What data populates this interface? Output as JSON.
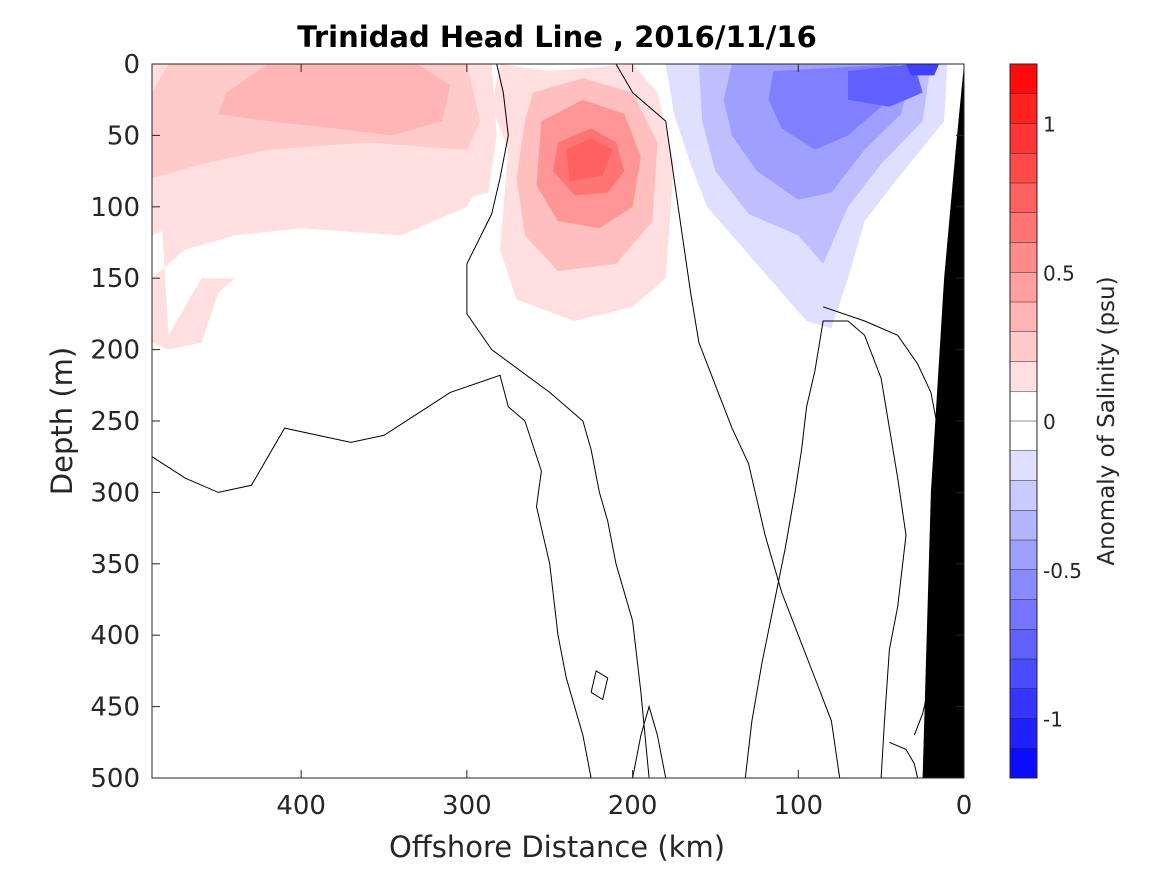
{
  "chart_data": {
    "type": "heatmap",
    "title": "Trinidad Head Line , 2016/11/16",
    "xlabel": "Offshore Distance (km)",
    "ylabel": "Depth (m)",
    "xlim": [
      490,
      0
    ],
    "ylim": [
      500,
      0
    ],
    "x_reversed": true,
    "y_reversed": true,
    "x_ticks": [
      400,
      300,
      200,
      100,
      0
    ],
    "y_ticks": [
      0,
      50,
      100,
      150,
      200,
      250,
      300,
      350,
      400,
      450,
      500
    ],
    "colorbar": {
      "label": "Anomaly of Salinity (psu)",
      "range": [
        -1.2,
        1.2
      ],
      "levels": 24,
      "ticks": [
        -1,
        -0.5,
        0,
        0.5,
        1
      ],
      "tick_labels": [
        "-1",
        "-0.5",
        "0",
        "0.5",
        "1"
      ]
    },
    "features": [
      {
        "kind": "positive_anomaly",
        "x_range": [
          490,
          290
        ],
        "depth_range": [
          0,
          195
        ],
        "peak_value": 0.35
      },
      {
        "kind": "positive_anomaly",
        "x_range": [
          280,
          175
        ],
        "depth_range": [
          0,
          180
        ],
        "peak_value": 0.75,
        "center": [
          220,
          70
        ]
      },
      {
        "kind": "negative_anomaly",
        "x_range": [
          170,
          10
        ],
        "depth_range": [
          0,
          190
        ],
        "peak_value": -0.85,
        "center": [
          20,
          5
        ]
      },
      {
        "kind": "land_mask",
        "color": "#000000"
      }
    ]
  }
}
